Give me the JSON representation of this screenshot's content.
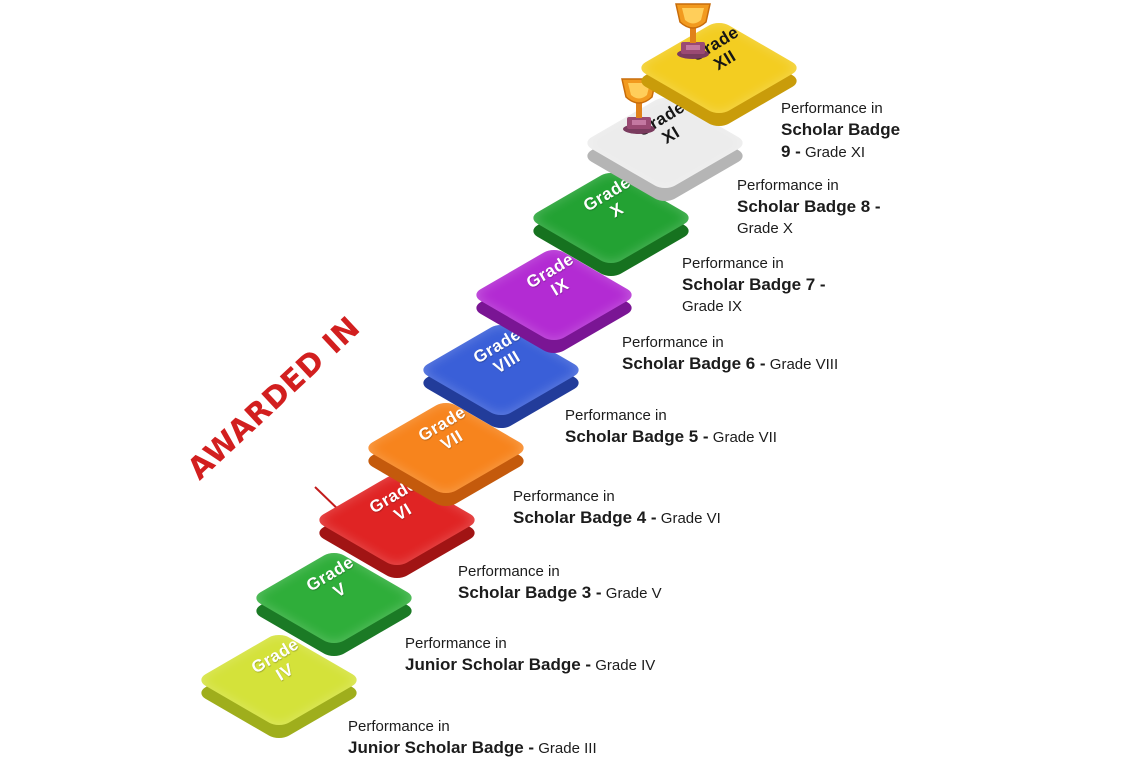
{
  "awarded_label": "AWARDED IN",
  "colors": {
    "awarded": "#d21f1f"
  },
  "steps": [
    {
      "word": "Grade",
      "numeral": "IV",
      "top": "#d4e23a",
      "side": "#9fae1c",
      "dark": false,
      "caption": {
        "perf": "Performance in",
        "badge": "Junior Scholar Badge -",
        "grade": "Grade III"
      }
    },
    {
      "word": "Grade",
      "numeral": "V",
      "top": "#2fae3a",
      "side": "#1b7a25",
      "dark": false,
      "caption": {
        "perf": "Performance in",
        "badge": "Junior Scholar Badge -",
        "grade": "Grade IV"
      }
    },
    {
      "word": "Grade",
      "numeral": "VI",
      "top": "#e02424",
      "side": "#a11414",
      "dark": false,
      "caption": {
        "perf": "Performance in",
        "badge": "Scholar Badge 3 -",
        "grade": "Grade V"
      }
    },
    {
      "word": "Grade",
      "numeral": "VII",
      "top": "#f7841d",
      "side": "#c45a0c",
      "dark": false,
      "caption": {
        "perf": "Performance in",
        "badge": "Scholar Badge 4 -",
        "grade": "Grade VI"
      }
    },
    {
      "word": "Grade",
      "numeral": "VIII",
      "top": "#3a5fd8",
      "side": "#223c9a",
      "dark": false,
      "caption": {
        "perf": "Performance in",
        "badge": "Scholar Badge 5 -",
        "grade": "Grade VII"
      }
    },
    {
      "word": "Grade",
      "numeral": "IX",
      "top": "#b32bd3",
      "side": "#7a1594",
      "dark": false,
      "caption": {
        "perf": "Performance in",
        "badge": "Scholar Badge 6 -",
        "grade": "Grade VIII"
      }
    },
    {
      "word": "Grade",
      "numeral": "X",
      "top": "#23a233",
      "side": "#16721f",
      "dark": false,
      "caption": {
        "perf": "Performance in",
        "badge": "Scholar Badge 7 -",
        "grade": "Grade IX"
      }
    },
    {
      "word": "Grade",
      "numeral": "XI",
      "top": "#ececec",
      "side": "#b5b5b5",
      "dark": true,
      "trophy": true,
      "caption": {
        "perf": "Performance in",
        "badge": "Scholar Badge 8 -",
        "grade": "Grade X"
      }
    },
    {
      "word": "Grade",
      "numeral": "XII",
      "top": "#f3cd21",
      "side": "#c99c0a",
      "dark": true,
      "trophy": true,
      "caption": {
        "perf": "Performance in",
        "badge": "Scholar Badge 9 -",
        "grade": "Grade XI"
      }
    }
  ]
}
